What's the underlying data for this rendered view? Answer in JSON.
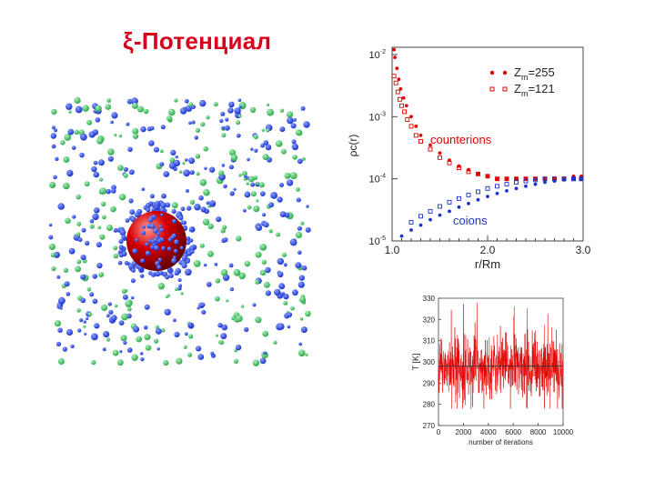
{
  "title": "ξ-Потенциал",
  "colors": {
    "title": "#d6001c",
    "counterion": "#e30000",
    "coion": "#1a33cc",
    "green": "#2da84a",
    "macroion": "#d40000"
  },
  "chart_data": [
    {
      "type": "scatter",
      "yscale": "log",
      "ylabel": "ρc(r)",
      "xlabel": "r/Rm",
      "xlim": [
        1.0,
        3.0
      ],
      "ylim": [
        1e-05,
        0.01
      ],
      "x_ticks": [
        "1.0",
        "2.0",
        "3.0"
      ],
      "y_ticks": [
        "10-5",
        "10-4",
        "10-3",
        "10-2"
      ],
      "legend_position": "top-right",
      "legend": [
        {
          "label": "Zm=255",
          "marker": "filled"
        },
        {
          "label": "Zm=121",
          "marker": "open"
        }
      ],
      "annotations": [
        "counterions",
        "coions"
      ],
      "series": [
        {
          "name": "counterions, Zm=255",
          "marker": "filled",
          "color": "#e30000",
          "x": [
            1.02,
            1.03,
            1.05,
            1.07,
            1.09,
            1.12,
            1.15,
            1.2,
            1.25,
            1.3,
            1.4,
            1.5,
            1.6,
            1.7,
            1.8,
            1.9,
            2.0,
            2.1,
            2.2,
            2.3,
            2.4,
            2.5,
            2.6,
            2.7,
            2.8,
            2.9,
            2.98
          ],
          "y": [
            0.012,
            0.009,
            0.006,
            0.004,
            0.0028,
            0.002,
            0.0015,
            0.001,
            0.0007,
            0.0005,
            0.00035,
            0.00026,
            0.0002,
            0.00016,
            0.00014,
            0.00012,
            0.00011,
            0.0001,
            0.0001,
            0.0001,
            0.0001,
            0.0001,
            0.0001,
            0.0001,
            0.0001,
            0.00011,
            0.00011
          ]
        },
        {
          "name": "counterions, Zm=121",
          "marker": "open",
          "color": "#e30000",
          "x": [
            1.02,
            1.04,
            1.06,
            1.08,
            1.1,
            1.13,
            1.16,
            1.2,
            1.25,
            1.3,
            1.4,
            1.5,
            1.6,
            1.7,
            1.8,
            1.9,
            2.0,
            2.1,
            2.2,
            2.3,
            2.4,
            2.5,
            2.6,
            2.7,
            2.8,
            2.9,
            2.98
          ],
          "y": [
            0.0045,
            0.0035,
            0.0025,
            0.0019,
            0.0015,
            0.0012,
            0.0009,
            0.0007,
            0.0005,
            0.0004,
            0.0003,
            0.00022,
            0.00018,
            0.00015,
            0.00013,
            0.00012,
            0.00011,
            0.0001,
            0.0001,
            0.0001,
            0.0001,
            0.0001,
            0.0001,
            0.0001,
            0.0001,
            0.0001,
            0.0001
          ]
        },
        {
          "name": "coions, Zm=255",
          "marker": "filled",
          "color": "#1a33cc",
          "x": [
            1.1,
            1.2,
            1.3,
            1.4,
            1.5,
            1.6,
            1.7,
            1.8,
            1.9,
            2.0,
            2.1,
            2.2,
            2.3,
            2.4,
            2.5,
            2.6,
            2.7,
            2.8,
            2.9,
            2.98
          ],
          "y": [
            1.2e-05,
            1.5e-05,
            1.8e-05,
            2.2e-05,
            2.6e-05,
            3e-05,
            3.5e-05,
            4e-05,
            4.6e-05,
            5.2e-05,
            5.8e-05,
            6.4e-05,
            7e-05,
            7.6e-05,
            8.2e-05,
            8.8e-05,
            9.2e-05,
            9.6e-05,
            0.0001,
            0.0001
          ]
        },
        {
          "name": "coions, Zm=121",
          "marker": "open",
          "color": "#1a33cc",
          "x": [
            1.2,
            1.3,
            1.4,
            1.5,
            1.6,
            1.7,
            1.8,
            1.9,
            2.0,
            2.1,
            2.2,
            2.3,
            2.4,
            2.5,
            2.6,
            2.7,
            2.8,
            2.9,
            2.98
          ],
          "y": [
            2e-05,
            2.5e-05,
            3e-05,
            3.6e-05,
            4.2e-05,
            4.8e-05,
            5.5e-05,
            6.2e-05,
            7e-05,
            7.6e-05,
            8.2e-05,
            8.8e-05,
            9.2e-05,
            9.6e-05,
            0.0001,
            0.0001,
            0.0001,
            0.0001,
            0.0001
          ]
        }
      ]
    },
    {
      "type": "line",
      "ylabel": "T [K]",
      "xlabel": "number of iterations",
      "xlim": [
        0,
        10000
      ],
      "ylim": [
        270,
        330
      ],
      "x_ticks": [
        "0",
        "2000",
        "4000",
        "6000",
        "8000",
        "10000"
      ],
      "y_ticks": [
        "270",
        "280",
        "290",
        "300",
        "310",
        "320",
        "330"
      ],
      "reference_line": 298,
      "series": [
        {
          "color": "#e30000",
          "mean": 298,
          "spread": 10
        }
      ]
    }
  ],
  "snapshot": {
    "macroion_color": "#d40000",
    "counterion_color": "#1a33cc",
    "coion_color": "#2da84a"
  }
}
